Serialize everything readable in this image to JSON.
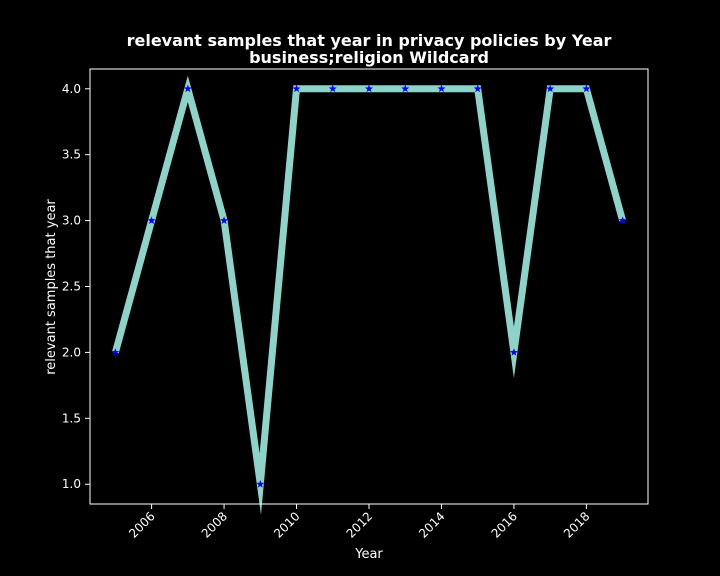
{
  "chart_data": {
    "type": "line",
    "title_line1": "relevant samples that year in privacy policies by Year",
    "title_line2": "business;religion Wildcard",
    "xlabel": "Year",
    "ylabel": "relevant samples that year",
    "x": [
      2005,
      2006,
      2007,
      2008,
      2009,
      2010,
      2011,
      2012,
      2013,
      2014,
      2015,
      2016,
      2017,
      2018,
      2019
    ],
    "series": [
      {
        "values": [
          2,
          3,
          4,
          3,
          1,
          4,
          4,
          4,
          4,
          4,
          4,
          2,
          4,
          4,
          3
        ],
        "line_color": "#8dd3c7",
        "marker_color": "#0000ff",
        "marker": "star"
      }
    ],
    "xlim": [
      2004.3,
      2019.7
    ],
    "ylim": [
      0.85,
      4.15
    ],
    "xticks": [
      2006,
      2008,
      2010,
      2012,
      2014,
      2016,
      2018
    ],
    "xtick_labels": [
      "2006",
      "2008",
      "2010",
      "2012",
      "2014",
      "2016",
      "2018"
    ],
    "yticks": [
      1.0,
      1.5,
      2.0,
      2.5,
      3.0,
      3.5,
      4.0
    ],
    "ytick_labels": [
      "1.0",
      "1.5",
      "2.0",
      "2.5",
      "3.0",
      "3.5",
      "4.0"
    ],
    "grid": false,
    "background": "#000000",
    "axes_color": "#ffffff"
  }
}
